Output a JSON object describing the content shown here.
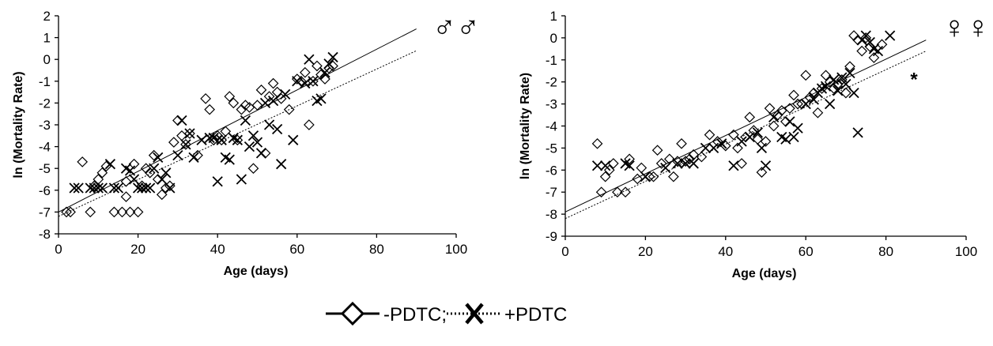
{
  "legend": {
    "minus_label": "-PDTC;",
    "plus_label": "+PDTC"
  },
  "chart_data": [
    {
      "type": "scatter",
      "panel": "left",
      "corner_symbol": "♂♂",
      "xlabel": "Age (days)",
      "ylabel": "ln (Mortality Rate)",
      "xlim": [
        0,
        100
      ],
      "ylim": [
        -8,
        2
      ],
      "xticks": [
        "0",
        "20",
        "40",
        "60",
        "80",
        "100"
      ],
      "yticks": [
        "-8",
        "-7",
        "-6",
        "-5",
        "-4",
        "-3",
        "-2",
        "-1",
        "0",
        "1",
        "2"
      ],
      "series": [
        {
          "name": "-PDTC",
          "marker": "diamond",
          "points": [
            [
              2,
              -7.0
            ],
            [
              3,
              -7.0
            ],
            [
              6,
              -4.7
            ],
            [
              8,
              -7.0
            ],
            [
              9,
              -5.8
            ],
            [
              10,
              -5.5
            ],
            [
              11,
              -5.2
            ],
            [
              12,
              -4.9
            ],
            [
              14,
              -7.0
            ],
            [
              16,
              -7.0
            ],
            [
              17,
              -5.6
            ],
            [
              17,
              -6.3
            ],
            [
              18,
              -7.0
            ],
            [
              19,
              -4.8
            ],
            [
              20,
              -7.0
            ],
            [
              21,
              -5.8
            ],
            [
              22,
              -5.0
            ],
            [
              23,
              -5.2
            ],
            [
              24,
              -4.4
            ],
            [
              25,
              -5.5
            ],
            [
              26,
              -6.2
            ],
            [
              27,
              -5.9
            ],
            [
              28,
              -5.8
            ],
            [
              29,
              -3.8
            ],
            [
              30,
              -2.8
            ],
            [
              31,
              -3.5
            ],
            [
              32,
              -3.9
            ],
            [
              33,
              -3.4
            ],
            [
              35,
              -4.4
            ],
            [
              37,
              -1.8
            ],
            [
              38,
              -2.3
            ],
            [
              39,
              -3.7
            ],
            [
              40,
              -3.5
            ],
            [
              41,
              -3.7
            ],
            [
              42,
              -3.3
            ],
            [
              43,
              -1.7
            ],
            [
              44,
              -2.0
            ],
            [
              45,
              -3.7
            ],
            [
              46,
              -2.3
            ],
            [
              47,
              -2.1
            ],
            [
              48,
              -2.2
            ],
            [
              49,
              -5.0
            ],
            [
              50,
              -2.1
            ],
            [
              51,
              -1.4
            ],
            [
              52,
              -4.3
            ],
            [
              53,
              -1.7
            ],
            [
              54,
              -1.1
            ],
            [
              55,
              -1.5
            ],
            [
              56,
              -1.8
            ],
            [
              58,
              -2.3
            ],
            [
              60,
              -0.9
            ],
            [
              61,
              -1.0
            ],
            [
              62,
              -0.6
            ],
            [
              63,
              -3.0
            ],
            [
              64,
              -1.0
            ],
            [
              65,
              -0.3
            ],
            [
              66,
              -0.7
            ],
            [
              67,
              -0.9
            ],
            [
              68,
              -0.4
            ],
            [
              69,
              -0.3
            ]
          ]
        },
        {
          "name": "+PDTC",
          "marker": "x",
          "points": [
            [
              4,
              -5.9
            ],
            [
              5,
              -5.9
            ],
            [
              8,
              -5.9
            ],
            [
              9,
              -5.9
            ],
            [
              10,
              -5.9
            ],
            [
              11,
              -5.9
            ],
            [
              13,
              -4.8
            ],
            [
              14,
              -5.9
            ],
            [
              15,
              -5.9
            ],
            [
              17,
              -5.0
            ],
            [
              18,
              -5.1
            ],
            [
              19,
              -5.5
            ],
            [
              20,
              -5.9
            ],
            [
              21,
              -5.9
            ],
            [
              22,
              -5.9
            ],
            [
              23,
              -5.9
            ],
            [
              24,
              -5.0
            ],
            [
              25,
              -4.5
            ],
            [
              26,
              -5.5
            ],
            [
              27,
              -5.2
            ],
            [
              28,
              -5.9
            ],
            [
              30,
              -4.4
            ],
            [
              31,
              -2.8
            ],
            [
              32,
              -3.9
            ],
            [
              33,
              -3.4
            ],
            [
              34,
              -4.5
            ],
            [
              36,
              -3.7
            ],
            [
              38,
              -3.6
            ],
            [
              39,
              -3.6
            ],
            [
              40,
              -5.6
            ],
            [
              41,
              -3.7
            ],
            [
              42,
              -4.5
            ],
            [
              43,
              -4.6
            ],
            [
              44,
              -3.6
            ],
            [
              45,
              -3.7
            ],
            [
              46,
              -5.5
            ],
            [
              47,
              -2.8
            ],
            [
              48,
              -4.0
            ],
            [
              49,
              -3.5
            ],
            [
              50,
              -3.8
            ],
            [
              51,
              -4.3
            ],
            [
              52,
              -2.0
            ],
            [
              53,
              -3.0
            ],
            [
              54,
              -1.9
            ],
            [
              55,
              -3.2
            ],
            [
              56,
              -4.8
            ],
            [
              57,
              -1.6
            ],
            [
              59,
              -3.7
            ],
            [
              60,
              -1.0
            ],
            [
              62,
              -1.1
            ],
            [
              63,
              0.0
            ],
            [
              64,
              -1.0
            ],
            [
              65,
              -1.9
            ],
            [
              66,
              -1.8
            ],
            [
              67,
              -0.6
            ],
            [
              68,
              -0.2
            ],
            [
              69,
              0.1
            ]
          ]
        },
        {
          "name": "-PDTC fit",
          "line": "solid",
          "points": [
            [
              0,
              -7.0
            ],
            [
              90,
              1.4
            ]
          ]
        },
        {
          "name": "+PDTC fit",
          "line": "dotted",
          "points": [
            [
              0,
              -7.2
            ],
            [
              90,
              0.4
            ]
          ]
        }
      ]
    },
    {
      "type": "scatter",
      "panel": "right",
      "corner_symbol": "♀♀",
      "annotation": "*",
      "annotation_at": [
        87,
        -1.75
      ],
      "xlabel": "Age (days)",
      "ylabel": "ln (Mortality Rate)",
      "xlim": [
        0,
        100
      ],
      "ylim": [
        -9,
        1
      ],
      "xticks": [
        "0",
        "20",
        "40",
        "60",
        "80",
        "100"
      ],
      "yticks": [
        "-9",
        "-8",
        "-7",
        "-6",
        "-5",
        "-4",
        "-3",
        "-2",
        "-1",
        "0",
        "1"
      ],
      "series": [
        {
          "name": "-PDTC",
          "marker": "diamond",
          "points": [
            [
              8,
              -4.8
            ],
            [
              9,
              -7.0
            ],
            [
              10,
              -6.3
            ],
            [
              11,
              -6.0
            ],
            [
              12,
              -5.7
            ],
            [
              13,
              -7.0
            ],
            [
              15,
              -7.0
            ],
            [
              16,
              -5.5
            ],
            [
              18,
              -6.4
            ],
            [
              19,
              -5.9
            ],
            [
              21,
              -6.3
            ],
            [
              22,
              -6.3
            ],
            [
              23,
              -5.1
            ],
            [
              24,
              -5.7
            ],
            [
              26,
              -5.5
            ],
            [
              27,
              -6.3
            ],
            [
              28,
              -5.6
            ],
            [
              29,
              -4.8
            ],
            [
              30,
              -5.6
            ],
            [
              31,
              -5.5
            ],
            [
              32,
              -5.3
            ],
            [
              34,
              -5.4
            ],
            [
              36,
              -4.4
            ],
            [
              38,
              -4.7
            ],
            [
              40,
              -4.9
            ],
            [
              42,
              -4.4
            ],
            [
              43,
              -5.0
            ],
            [
              44,
              -5.7
            ],
            [
              45,
              -4.5
            ],
            [
              46,
              -3.6
            ],
            [
              47,
              -4.2
            ],
            [
              48,
              -4.6
            ],
            [
              49,
              -6.1
            ],
            [
              50,
              -4.7
            ],
            [
              51,
              -3.2
            ],
            [
              52,
              -4.0
            ],
            [
              53,
              -3.5
            ],
            [
              54,
              -3.3
            ],
            [
              55,
              -3.8
            ],
            [
              56,
              -3.2
            ],
            [
              57,
              -2.6
            ],
            [
              58,
              -3.0
            ],
            [
              59,
              -3.0
            ],
            [
              60,
              -1.7
            ],
            [
              61,
              -2.7
            ],
            [
              62,
              -2.5
            ],
            [
              63,
              -3.4
            ],
            [
              64,
              -2.3
            ],
            [
              65,
              -1.7
            ],
            [
              66,
              -2.0
            ],
            [
              67,
              -2.3
            ],
            [
              68,
              -2.1
            ],
            [
              69,
              -1.9
            ],
            [
              70,
              -2.5
            ],
            [
              71,
              -1.3
            ],
            [
              72,
              0.1
            ],
            [
              73,
              -0.1
            ],
            [
              74,
              -0.6
            ],
            [
              75,
              0.0
            ],
            [
              76,
              -0.4
            ],
            [
              77,
              -0.9
            ],
            [
              79,
              -0.3
            ]
          ]
        },
        {
          "name": "+PDTC",
          "marker": "x",
          "points": [
            [
              8,
              -5.8
            ],
            [
              10,
              -5.8
            ],
            [
              15,
              -5.7
            ],
            [
              16,
              -5.8
            ],
            [
              20,
              -6.3
            ],
            [
              25,
              -5.9
            ],
            [
              28,
              -5.7
            ],
            [
              30,
              -5.7
            ],
            [
              32,
              -5.7
            ],
            [
              35,
              -5.0
            ],
            [
              37,
              -5.0
            ],
            [
              39,
              -4.8
            ],
            [
              42,
              -5.8
            ],
            [
              44,
              -4.7
            ],
            [
              46,
              -4.5
            ],
            [
              48,
              -4.3
            ],
            [
              49,
              -5.0
            ],
            [
              50,
              -5.8
            ],
            [
              52,
              -3.6
            ],
            [
              54,
              -4.5
            ],
            [
              55,
              -4.6
            ],
            [
              56,
              -3.8
            ],
            [
              57,
              -4.5
            ],
            [
              58,
              -4.1
            ],
            [
              60,
              -3.0
            ],
            [
              62,
              -2.8
            ],
            [
              63,
              -2.5
            ],
            [
              64,
              -2.3
            ],
            [
              65,
              -2.2
            ],
            [
              66,
              -3.0
            ],
            [
              67,
              -1.9
            ],
            [
              68,
              -2.4
            ],
            [
              69,
              -1.8
            ],
            [
              70,
              -2.1
            ],
            [
              71,
              -1.6
            ],
            [
              72,
              -2.5
            ],
            [
              73,
              -4.3
            ],
            [
              74,
              -0.1
            ],
            [
              75,
              0.1
            ],
            [
              76,
              -0.2
            ],
            [
              77,
              -0.5
            ],
            [
              78,
              -0.6
            ],
            [
              81,
              0.1
            ]
          ]
        },
        {
          "name": "-PDTC fit",
          "line": "solid",
          "points": [
            [
              0,
              -7.9
            ],
            [
              90,
              -0.1
            ]
          ]
        },
        {
          "name": "+PDTC fit",
          "line": "dotted",
          "points": [
            [
              0,
              -8.2
            ],
            [
              90,
              -0.6
            ]
          ]
        }
      ]
    }
  ]
}
